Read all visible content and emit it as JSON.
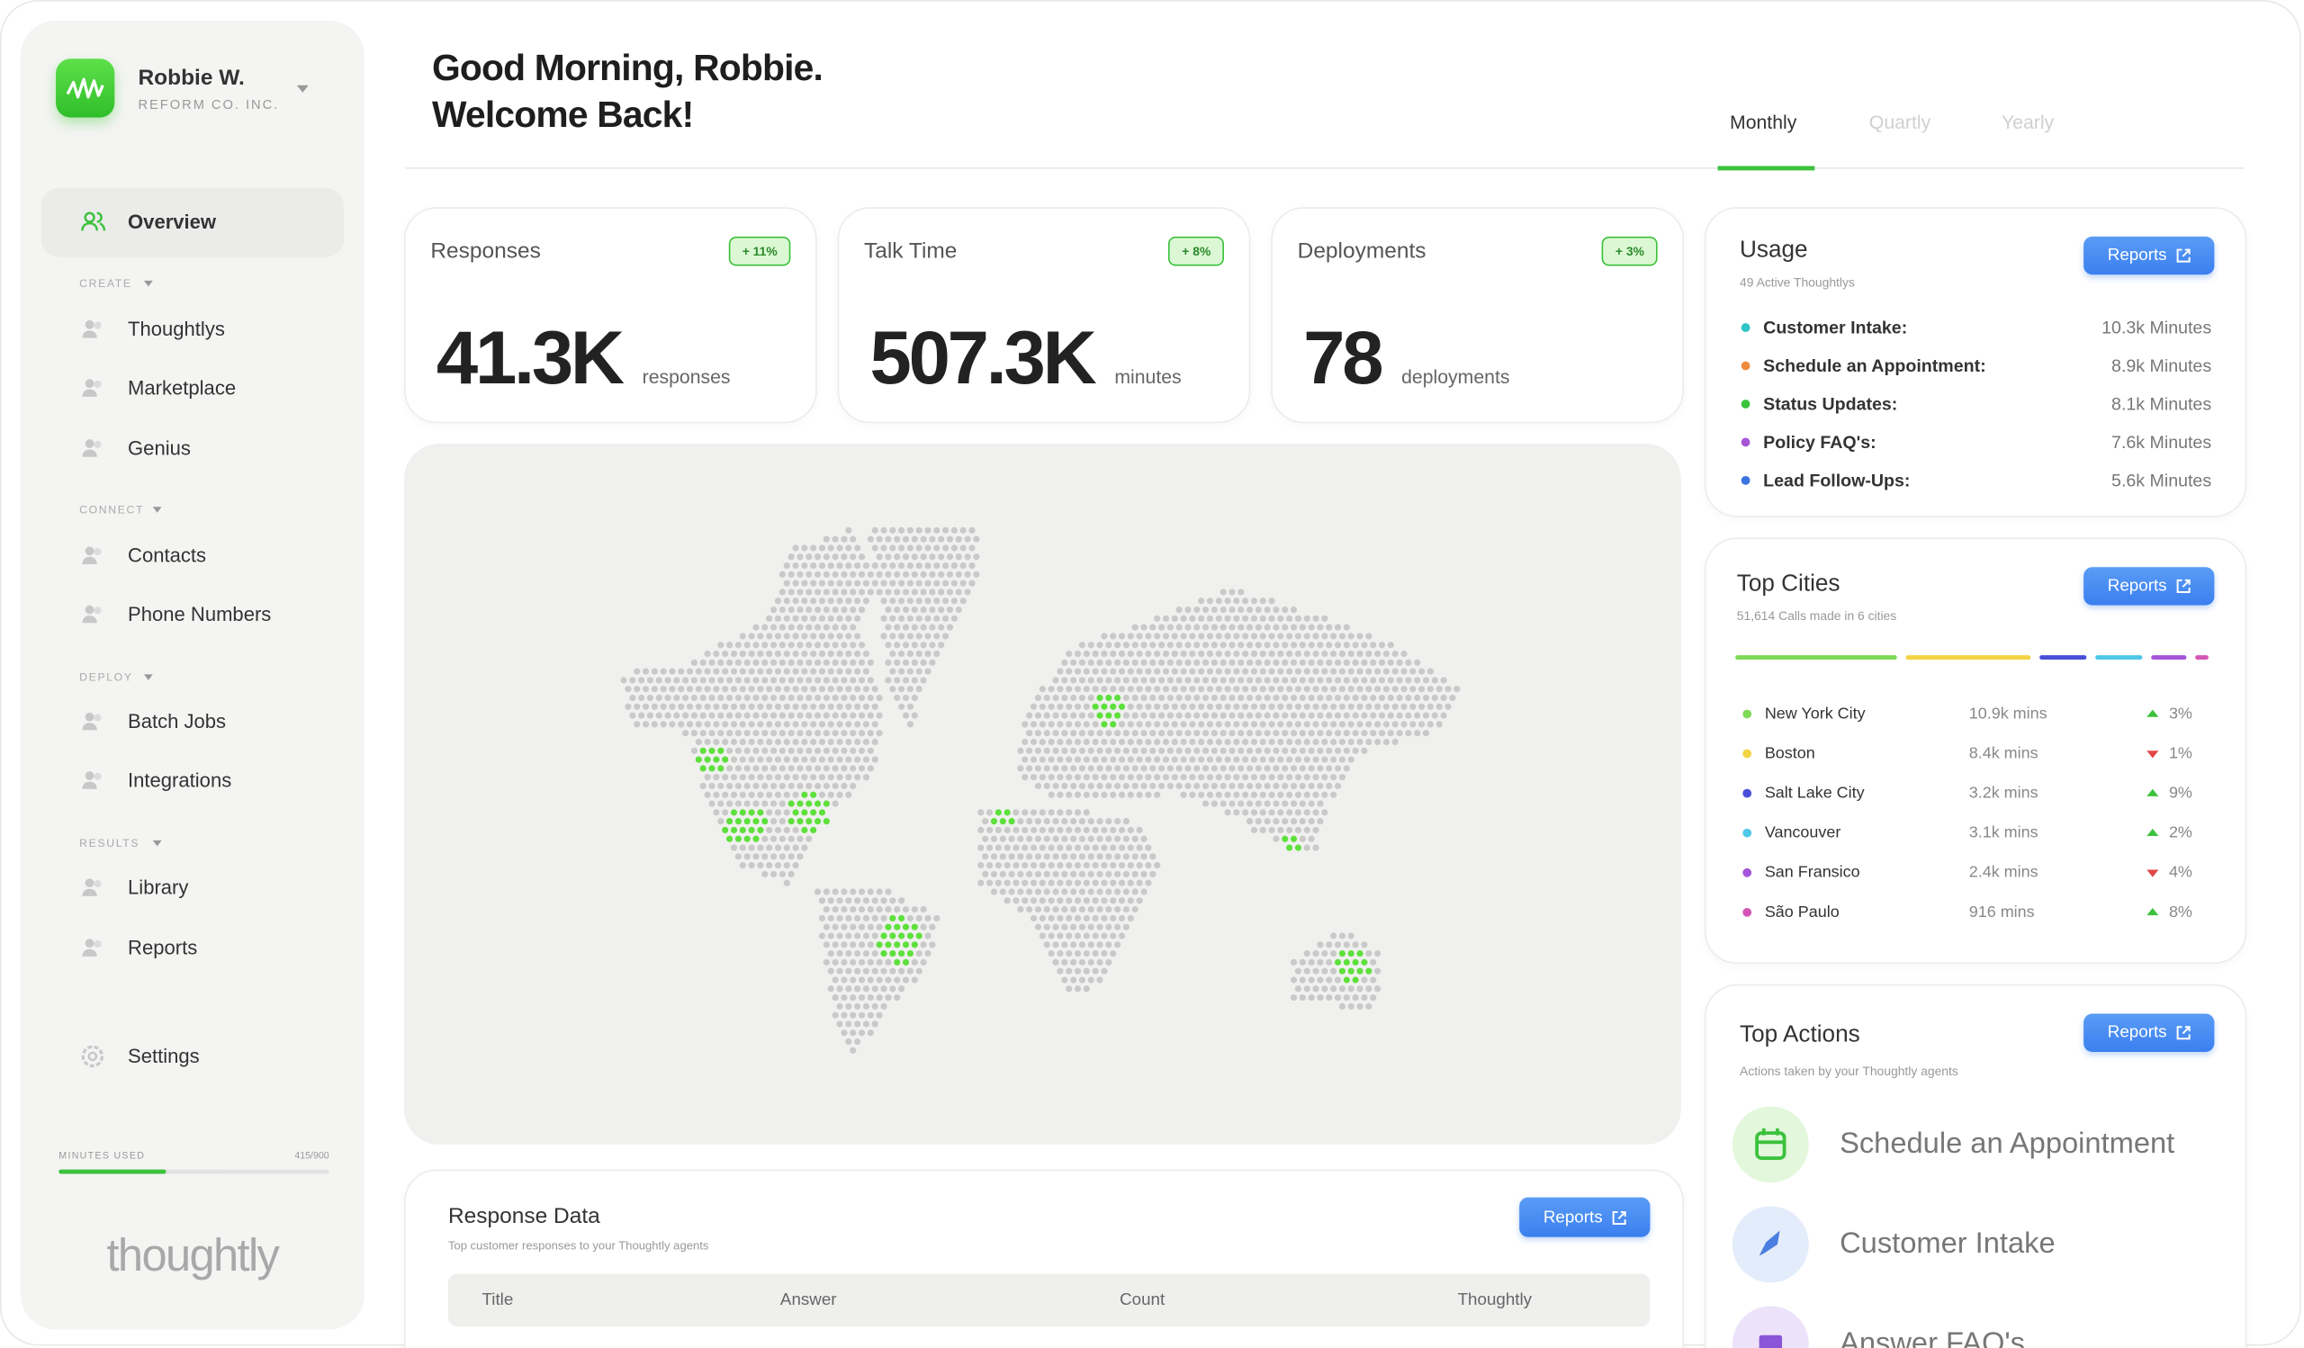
{
  "sidebar": {
    "user_name": "Robbie W.",
    "company": "REFORM CO. INC.",
    "items": [
      {
        "label": "Overview",
        "active": true
      },
      {
        "section": "CREATE"
      },
      {
        "label": "Thoughtlys"
      },
      {
        "label": "Marketplace"
      },
      {
        "label": "Genius"
      },
      {
        "section": "CONNECT"
      },
      {
        "label": "Contacts"
      },
      {
        "label": "Phone Numbers"
      },
      {
        "section": "DEPLOY"
      },
      {
        "label": "Batch Jobs"
      },
      {
        "label": "Integrations"
      },
      {
        "section": "RESULTS"
      },
      {
        "label": "Library"
      },
      {
        "label": "Reports"
      }
    ],
    "settings": "Settings",
    "minutes_label": "MINUTES USED",
    "minutes_text": "415/900",
    "logo": "thoughtly"
  },
  "header": {
    "greeting": "Good Morning, Robbie.",
    "welcome": "Welcome Back!",
    "tabs": [
      {
        "label": "Monthly",
        "active": true
      },
      {
        "label": "Quartly"
      },
      {
        "label": "Yearly"
      }
    ]
  },
  "stats": [
    {
      "title": "Responses",
      "badge": "+ 11%",
      "value": "41.3K",
      "unit": "responses"
    },
    {
      "title": "Talk Time",
      "badge": "+ 8%",
      "value": "507.3K",
      "unit": "minutes"
    },
    {
      "title": "Deployments",
      "badge": "+ 3%",
      "value": "78",
      "unit": "deployments"
    }
  ],
  "usage": {
    "title": "Usage",
    "subtitle": "49 Active Thoughtlys",
    "button": "Reports",
    "items": [
      {
        "name": "Customer Intake:",
        "value": "10.3k Minutes",
        "color": "#2ec4c8"
      },
      {
        "name": "Schedule an Appointment:",
        "value": "8.9k Minutes",
        "color": "#f08a3c"
      },
      {
        "name": "Status Updates:",
        "value": "8.1k Minutes",
        "color": "#3cc23c"
      },
      {
        "name": "Policy FAQ's:",
        "value": "7.6k Minutes",
        "color": "#a855d8"
      },
      {
        "name": "Lead Follow-Ups:",
        "value": "5.6k Minutes",
        "color": "#3b74e0"
      }
    ]
  },
  "top_cities": {
    "title": "Top Cities",
    "subtitle": "51,614 Calls made in 6 cities",
    "button": "Reports",
    "items": [
      {
        "name": "New York City",
        "minutes": 10900,
        "minutes_label": "10.9k mins",
        "change": "3%",
        "trend": "up",
        "color": "#7ed957"
      },
      {
        "name": "Boston",
        "minutes": 8400,
        "minutes_label": "8.4k mins",
        "change": "1%",
        "trend": "down",
        "color": "#f2d443"
      },
      {
        "name": "Salt Lake City",
        "minutes": 3200,
        "minutes_label": "3.2k mins",
        "change": "9%",
        "trend": "up",
        "color": "#4a4fd9"
      },
      {
        "name": "Vancouver",
        "minutes": 3100,
        "minutes_label": "3.1k mins",
        "change": "2%",
        "trend": "up",
        "color": "#4fc8e8"
      },
      {
        "name": "San Fransico",
        "minutes": 2400,
        "minutes_label": "2.4k mins",
        "change": "4%",
        "trend": "down",
        "color": "#a455d9"
      },
      {
        "name": "São Paulo",
        "minutes": 916,
        "minutes_label": "916 mins",
        "change": "8%",
        "trend": "up",
        "color": "#d455b5"
      }
    ]
  },
  "top_actions": {
    "title": "Top Actions",
    "subtitle": "Actions taken by your Thoughtly agents",
    "button": "Reports",
    "items": [
      {
        "label": "Schedule an Appointment",
        "color": "#e3f7dc"
      },
      {
        "label": "Customer Intake",
        "color": "#e3ecfa"
      },
      {
        "label": "Answer FAQ's",
        "color": "#ece3fa"
      }
    ]
  },
  "response_data": {
    "title": "Response Data",
    "subtitle": "Top customer responses to your Thoughtly agents",
    "button": "Reports",
    "columns": [
      "Title",
      "Answer",
      "Count",
      "Thoughtly"
    ]
  }
}
